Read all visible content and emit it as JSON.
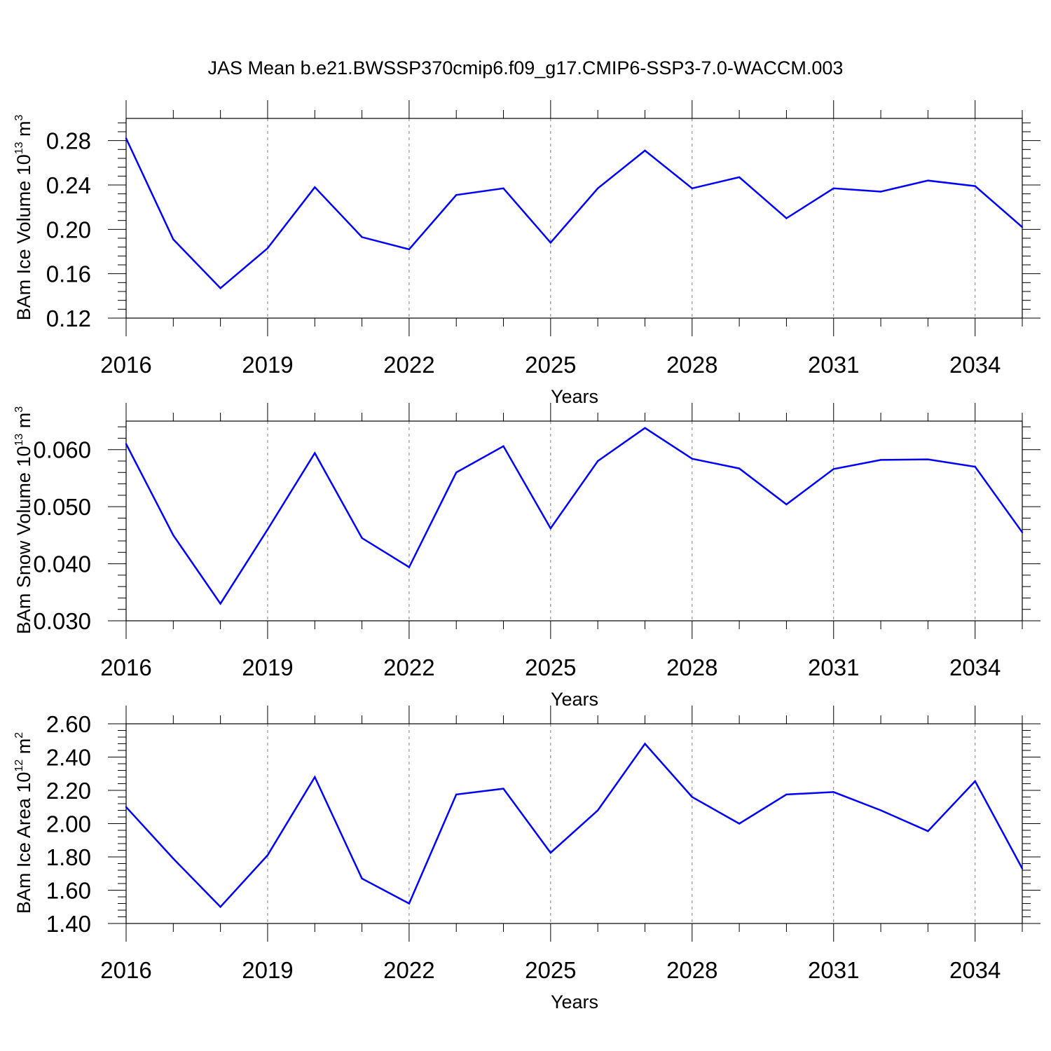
{
  "title": "JAS Mean b.e21.BWSSP370cmip6.f09_g17.CMIP6-SSP3-7.0-WACCM.003",
  "colors": {
    "line": "#0000ff",
    "axis": "#000000",
    "grid": "#808080"
  },
  "chart_data": [
    {
      "type": "line",
      "xlabel": "Years",
      "ylabel": {
        "text": "BAm Ice Volume 10",
        "exp": "13",
        "unit": "m",
        "unit_exp": "3"
      },
      "x": [
        2016,
        2017,
        2018,
        2019,
        2020,
        2021,
        2022,
        2023,
        2024,
        2025,
        2026,
        2027,
        2028,
        2029,
        2030,
        2031,
        2032,
        2033,
        2034,
        2035
      ],
      "values": [
        0.282,
        0.191,
        0.147,
        0.183,
        0.238,
        0.193,
        0.182,
        0.231,
        0.237,
        0.188,
        0.237,
        0.271,
        0.237,
        0.247,
        0.21,
        0.237,
        0.234,
        0.244,
        0.239,
        0.202
      ],
      "xlim": [
        2016,
        2035
      ],
      "ylim": [
        0.12,
        0.3
      ],
      "yticks": [
        0.12,
        0.16,
        0.2,
        0.24,
        0.28
      ],
      "ytick_labels": [
        "0.12",
        "0.16",
        "0.20",
        "0.24",
        "0.28"
      ],
      "xticks": [
        2016,
        2019,
        2022,
        2025,
        2028,
        2031,
        2034
      ],
      "xtick_labels": [
        "2016",
        "2019",
        "2022",
        "2025",
        "2028",
        "2031",
        "2034"
      ],
      "grid": "vertical-dashed"
    },
    {
      "type": "line",
      "xlabel": "Years",
      "ylabel": {
        "text": "BAm Snow Volume 10",
        "exp": "13",
        "unit": "m",
        "unit_exp": "3"
      },
      "x": [
        2016,
        2017,
        2018,
        2019,
        2020,
        2021,
        2022,
        2023,
        2024,
        2025,
        2026,
        2027,
        2028,
        2029,
        2030,
        2031,
        2032,
        2033,
        2034,
        2035
      ],
      "values": [
        0.061,
        0.045,
        0.033,
        0.046,
        0.0594,
        0.0445,
        0.0394,
        0.056,
        0.0606,
        0.0462,
        0.058,
        0.0638,
        0.0584,
        0.0567,
        0.0504,
        0.0566,
        0.0582,
        0.0583,
        0.057,
        0.0455
      ],
      "xlim": [
        2016,
        2035
      ],
      "ylim": [
        0.03,
        0.065
      ],
      "yticks": [
        0.03,
        0.04,
        0.05,
        0.06
      ],
      "ytick_labels": [
        "0.030",
        "0.040",
        "0.050",
        "0.060"
      ],
      "xticks": [
        2016,
        2019,
        2022,
        2025,
        2028,
        2031,
        2034
      ],
      "xtick_labels": [
        "2016",
        "2019",
        "2022",
        "2025",
        "2028",
        "2031",
        "2034"
      ],
      "grid": "vertical-dashed"
    },
    {
      "type": "line",
      "xlabel": "Years",
      "ylabel": {
        "text": "BAm Ice Area 10",
        "exp": "12",
        "unit": "m",
        "unit_exp": "2"
      },
      "x": [
        2016,
        2017,
        2018,
        2019,
        2020,
        2021,
        2022,
        2023,
        2024,
        2025,
        2026,
        2027,
        2028,
        2029,
        2030,
        2031,
        2032,
        2033,
        2034,
        2035
      ],
      "values": [
        2.1,
        1.79,
        1.5,
        1.81,
        2.28,
        1.67,
        1.52,
        2.175,
        2.21,
        1.825,
        2.08,
        2.48,
        2.16,
        2.0,
        2.175,
        2.19,
        2.08,
        1.955,
        2.255,
        1.73
      ],
      "xlim": [
        2016,
        2035
      ],
      "ylim": [
        1.4,
        2.6
      ],
      "yticks": [
        1.4,
        1.6,
        1.8,
        2.0,
        2.2,
        2.4,
        2.6
      ],
      "ytick_labels": [
        "1.40",
        "1.60",
        "1.80",
        "2.00",
        "2.20",
        "2.40",
        "2.60"
      ],
      "xticks": [
        2016,
        2019,
        2022,
        2025,
        2028,
        2031,
        2034
      ],
      "xtick_labels": [
        "2016",
        "2019",
        "2022",
        "2025",
        "2028",
        "2031",
        "2034"
      ],
      "grid": "vertical-dashed"
    }
  ]
}
